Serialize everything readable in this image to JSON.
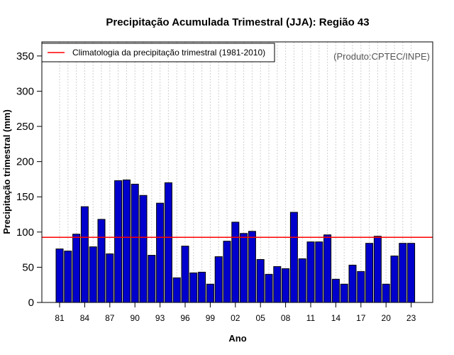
{
  "chart_data": {
    "type": "bar",
    "title": "Precipitação Acumulada Trimestral (JJA): Região 43",
    "xlabel": "Ano",
    "ylabel": "Precipitação trimestral (mm)",
    "ylim": [
      0,
      370
    ],
    "yticks": [
      0,
      50,
      100,
      150,
      200,
      250,
      300,
      350
    ],
    "xtick_labels": [
      "81",
      "84",
      "87",
      "90",
      "93",
      "96",
      "99",
      "02",
      "05",
      "08",
      "11",
      "14",
      "17",
      "20",
      "23"
    ],
    "categories": [
      "1981",
      "1982",
      "1983",
      "1984",
      "1985",
      "1986",
      "1987",
      "1988",
      "1989",
      "1990",
      "1991",
      "1992",
      "1993",
      "1994",
      "1995",
      "1996",
      "1997",
      "1998",
      "1999",
      "2000",
      "2001",
      "2002",
      "2003",
      "2004",
      "2005",
      "2006",
      "2007",
      "2008",
      "2009",
      "2010",
      "2011",
      "2012",
      "2013",
      "2014",
      "2015",
      "2016",
      "2017",
      "2018",
      "2019",
      "2020",
      "2021",
      "2022",
      "2023"
    ],
    "values": [
      76,
      73,
      97,
      136,
      79,
      118,
      69,
      173,
      174,
      168,
      152,
      67,
      141,
      170,
      35,
      80,
      42,
      43,
      26,
      65,
      87,
      114,
      98,
      101,
      61,
      40,
      51,
      48,
      128,
      62,
      86,
      86,
      96,
      33,
      26,
      53,
      44,
      84,
      94,
      26,
      66,
      84,
      84
    ],
    "bar_color": "#0000CD",
    "grid": true,
    "reference_line": {
      "label": "Climatologia da precipitação trimestral (1981-2010)",
      "value": 92.5,
      "color": "#FF0000"
    },
    "legend_position": "top-left",
    "credit": "(Produto:CPTEC/INPE)"
  }
}
